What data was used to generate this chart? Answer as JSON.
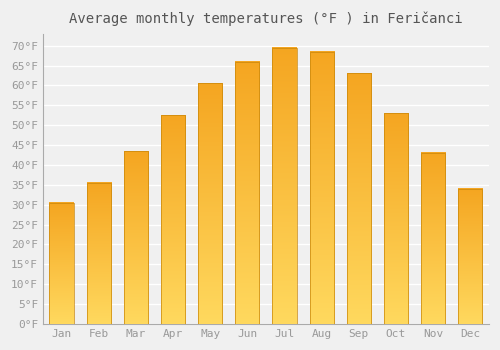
{
  "title": "Average monthly temperatures (°F ) in Feričanci",
  "months": [
    "Jan",
    "Feb",
    "Mar",
    "Apr",
    "May",
    "Jun",
    "Jul",
    "Aug",
    "Sep",
    "Oct",
    "Nov",
    "Dec"
  ],
  "values": [
    30.5,
    35.5,
    43.5,
    52.5,
    60.5,
    66.0,
    69.5,
    68.5,
    63.0,
    53.0,
    43.0,
    34.0
  ],
  "bar_color_top": "#F5A623",
  "bar_color_bottom": "#FFD060",
  "bar_edge_color": "#C8860A",
  "background_color": "#F0F0F0",
  "plot_bg_color": "#F0F0F0",
  "grid_color": "#FFFFFF",
  "text_color": "#999999",
  "title_color": "#555555",
  "yticks": [
    0,
    5,
    10,
    15,
    20,
    25,
    30,
    35,
    40,
    45,
    50,
    55,
    60,
    65,
    70
  ],
  "ylim": [
    0,
    73
  ],
  "bar_width": 0.65,
  "font_family": "monospace",
  "title_fontsize": 10,
  "tick_fontsize": 8
}
